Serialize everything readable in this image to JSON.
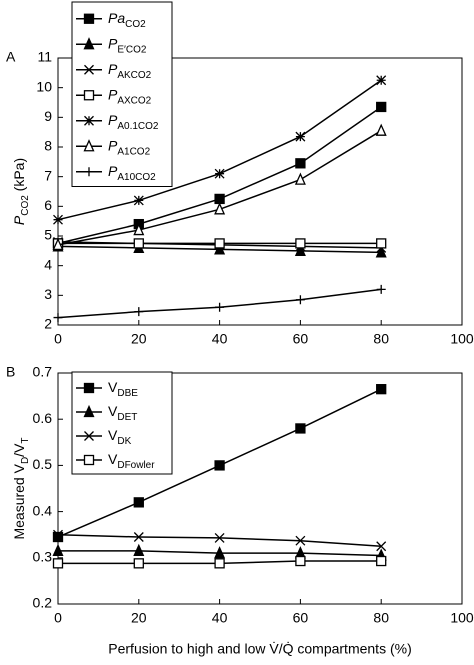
{
  "chart_data": [
    {
      "type": "line",
      "panel_label": "A",
      "ylabel": "P",
      "ylabel_sub": "CO2",
      "ylabel_unit": "(kPa)",
      "x": [
        0,
        20,
        40,
        60,
        80
      ],
      "xlim": [
        0,
        100
      ],
      "xticks": [
        0,
        20,
        40,
        60,
        80,
        100
      ],
      "ylim": [
        2,
        11
      ],
      "yticks": [
        2,
        3,
        4,
        5,
        6,
        7,
        8,
        9,
        10,
        11
      ],
      "legend_italic": true,
      "series": [
        {
          "name": "Pa",
          "subscript": "CO2",
          "color": "#000000",
          "marker": "square-filled",
          "values": [
            4.75,
            5.4,
            6.25,
            7.45,
            9.35
          ]
        },
        {
          "name": "P",
          "subscript": "E′CO2",
          "color": "#000000",
          "marker": "triangle-filled",
          "values": [
            4.65,
            4.6,
            4.55,
            4.5,
            4.45
          ]
        },
        {
          "name": "P",
          "subscript": "AKCO2",
          "color": "#000000",
          "marker": "x",
          "values": [
            4.8,
            4.75,
            4.7,
            4.65,
            4.6
          ]
        },
        {
          "name": "P",
          "subscript": "AXCO2",
          "color": "#000000",
          "marker": "square-open",
          "values": [
            4.75,
            4.75,
            4.75,
            4.75,
            4.75
          ]
        },
        {
          "name": "P",
          "subscript": "A0.1CO2",
          "color": "#000000",
          "marker": "asterisk",
          "values": [
            5.55,
            6.2,
            7.1,
            8.35,
            10.25
          ]
        },
        {
          "name": "P",
          "subscript": "A1CO2",
          "color": "#000000",
          "marker": "triangle-open",
          "values": [
            4.7,
            5.2,
            5.9,
            6.9,
            8.55
          ]
        },
        {
          "name": "P",
          "subscript": "A10CO2",
          "color": "#000000",
          "marker": "plus",
          "values": [
            2.25,
            2.45,
            2.6,
            2.85,
            3.2
          ]
        }
      ]
    },
    {
      "type": "line",
      "panel_label": "B",
      "ylabel": "Measured V",
      "ylabel_sub": "D",
      "ylabel_mid": "/V",
      "ylabel_sub2": "T",
      "xlabel": "Perfusion to high and low V̇/Q̇ compartments (%)",
      "x": [
        0,
        20,
        40,
        60,
        80
      ],
      "xlim": [
        0,
        100
      ],
      "xticks": [
        0,
        20,
        40,
        60,
        80,
        100
      ],
      "ylim": [
        0.2,
        0.7
      ],
      "yticks": [
        0.2,
        0.3,
        0.4,
        0.5,
        0.6,
        0.7
      ],
      "legend_italic": false,
      "series": [
        {
          "name": "V",
          "subscript": "DBE",
          "color": "#000000",
          "marker": "square-filled",
          "values": [
            0.345,
            0.42,
            0.5,
            0.58,
            0.665
          ]
        },
        {
          "name": "V",
          "subscript": "DET",
          "color": "#000000",
          "marker": "triangle-filled",
          "values": [
            0.315,
            0.315,
            0.31,
            0.31,
            0.305
          ]
        },
        {
          "name": "V",
          "subscript": "DK",
          "color": "#000000",
          "marker": "x",
          "values": [
            0.35,
            0.345,
            0.343,
            0.337,
            0.325
          ]
        },
        {
          "name": "V",
          "subscript": "DFowler",
          "color": "#000000",
          "marker": "square-open",
          "values": [
            0.288,
            0.288,
            0.288,
            0.293,
            0.293
          ]
        }
      ]
    }
  ]
}
